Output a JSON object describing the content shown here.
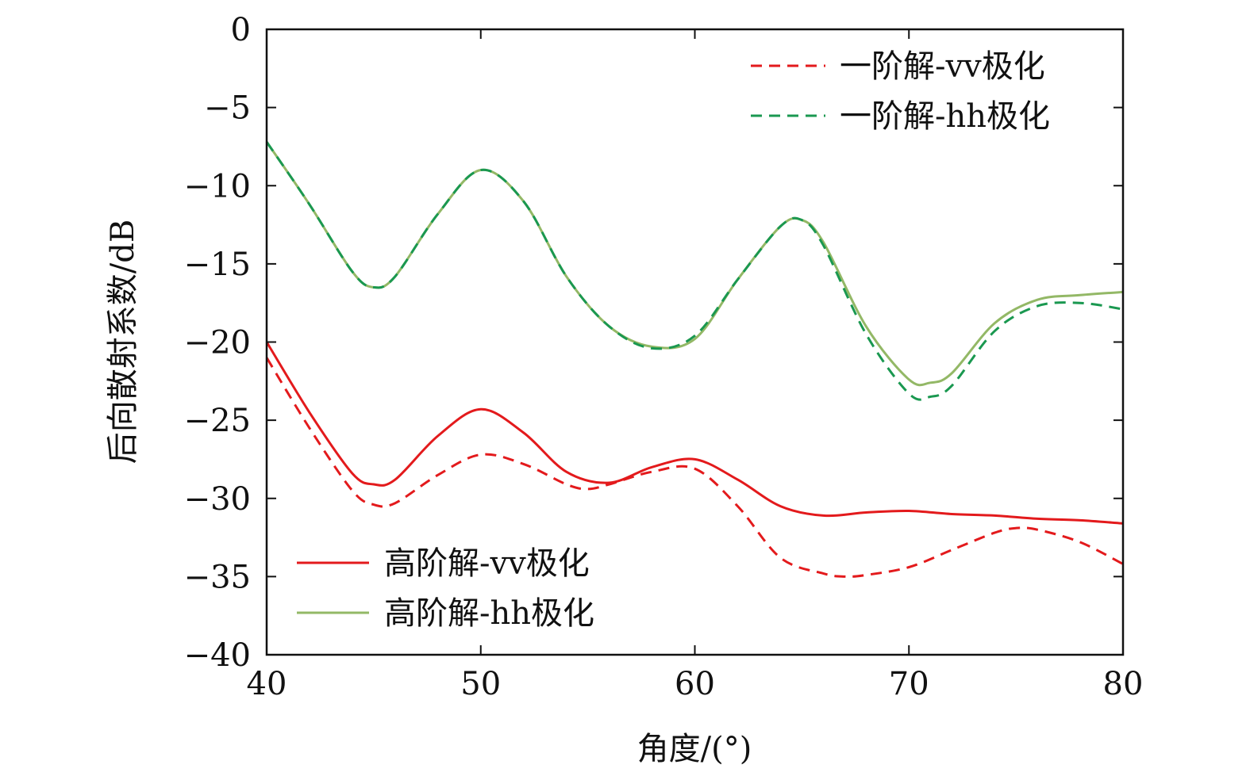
{
  "chart_data": {
    "type": "line",
    "xlabel": "角度/(°)",
    "ylabel": "后向散射系数/dB",
    "xlim": [
      40,
      80
    ],
    "ylim": [
      -40,
      0
    ],
    "xticks": [
      40,
      50,
      60,
      70,
      80
    ],
    "yticks": [
      0,
      -5,
      -10,
      -15,
      -20,
      -25,
      -30,
      -35,
      -40
    ],
    "ytick_labels": [
      "0",
      "−5",
      "−10",
      "−15",
      "−20",
      "−25",
      "−30",
      "−35",
      "−40"
    ],
    "grid": false,
    "legends": [
      {
        "placement": "top-right",
        "entries": [
          "一阶解-vv极化",
          "一阶解-hh极化"
        ]
      },
      {
        "placement": "bottom-left",
        "entries": [
          "高阶解-vv极化",
          "高阶解-hh极化"
        ]
      }
    ],
    "series": [
      {
        "name": "一阶解-vv极化",
        "color": "#e31a1c",
        "style": "dashed",
        "x": [
          40,
          42,
          44,
          45,
          46,
          48,
          50,
          52,
          54,
          55,
          56,
          58,
          60,
          62,
          64,
          66,
          67,
          68,
          70,
          72,
          74,
          75,
          76,
          78,
          80
        ],
        "y": [
          -21,
          -25.5,
          -29.5,
          -30.4,
          -30.3,
          -28.5,
          -27.2,
          -27.8,
          -29.1,
          -29.4,
          -29.1,
          -28.3,
          -28.1,
          -30.5,
          -33.8,
          -34.8,
          -35.0,
          -34.9,
          -34.4,
          -33.3,
          -32.2,
          -31.9,
          -32.0,
          -32.8,
          -34.2
        ]
      },
      {
        "name": "一阶解-hh极化",
        "color": "#1a9850",
        "style": "dashed",
        "x": [
          40,
          42,
          44,
          45,
          46,
          48,
          50,
          52,
          54,
          56,
          58,
          60,
          62,
          64,
          65,
          66,
          68,
          70,
          71,
          72,
          74,
          76,
          78,
          80
        ],
        "y": [
          -7.2,
          -11.2,
          -15.5,
          -16.5,
          -15.8,
          -11.8,
          -9.0,
          -11.0,
          -15.8,
          -19.0,
          -20.4,
          -19.6,
          -16.0,
          -12.6,
          -12.2,
          -13.8,
          -19.5,
          -23.3,
          -23.5,
          -22.8,
          -19.3,
          -17.7,
          -17.5,
          -17.9
        ]
      },
      {
        "name": "高阶解-vv极化",
        "color": "#e31a1c",
        "style": "solid",
        "x": [
          40,
          42,
          44,
          45,
          46,
          48,
          50,
          52,
          54,
          56,
          58,
          60,
          62,
          64,
          66,
          68,
          70,
          72,
          74,
          76,
          78,
          80
        ],
        "y": [
          -20.0,
          -24.5,
          -28.4,
          -29.1,
          -28.8,
          -26.0,
          -24.3,
          -25.8,
          -28.3,
          -29.0,
          -28.0,
          -27.5,
          -28.8,
          -30.5,
          -31.1,
          -30.9,
          -30.8,
          -31.0,
          -31.1,
          -31.3,
          -31.4,
          -31.6
        ]
      },
      {
        "name": "高阶解-hh极化",
        "color": "#93b866",
        "style": "solid",
        "x": [
          40,
          42,
          44,
          45,
          46,
          48,
          50,
          52,
          54,
          56,
          58,
          60,
          62,
          64,
          65,
          66,
          68,
          70,
          71,
          72,
          74,
          76,
          78,
          80
        ],
        "y": [
          -7.2,
          -11.2,
          -15.5,
          -16.5,
          -15.8,
          -11.8,
          -9.0,
          -11.0,
          -15.8,
          -19.0,
          -20.3,
          -19.8,
          -16.0,
          -12.6,
          -12.2,
          -13.6,
          -19.0,
          -22.4,
          -22.6,
          -22.0,
          -18.8,
          -17.3,
          -17.0,
          -16.8
        ]
      }
    ]
  }
}
